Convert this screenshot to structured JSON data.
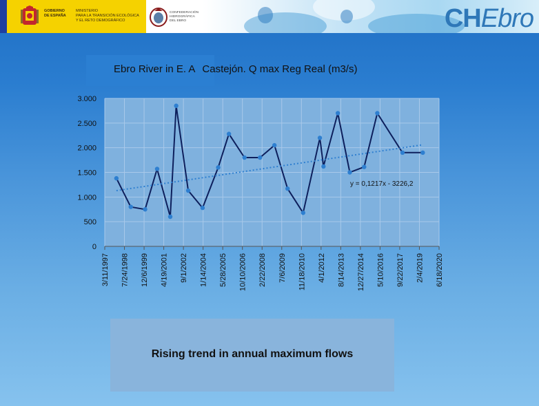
{
  "header": {
    "gov_line1": "GOBIERNO",
    "gov_line2": "DE ESPAÑA",
    "ministry_line1": "MINISTERIO",
    "ministry_line2": "PARA LA TRANSICIÓN ECOLÓGICA",
    "ministry_line3": "Y EL RETO DEMOGRÁFICO",
    "conf_line1": "CONFEDERACIÓN",
    "conf_line2": "HIDROGRÁFICA",
    "conf_line3": "DEL EBRO",
    "logo_ch": "CH",
    "logo_ebro": "Ebro"
  },
  "title": {
    "part1": "Ebro River in E. A",
    "part2": "Castejón. Q max Reg Real (m3/s)"
  },
  "bottom": {
    "text": "Rising trend in annual maximum flows"
  },
  "colors": {
    "series": "#0d1f5c",
    "markers": "#2e7fd0",
    "trend": "#2e7fd0",
    "grid": "#a9c9ea"
  },
  "chart_data": {
    "type": "line",
    "title": "Ebro River in E. A Castejón. Q max Reg Real (m3/s)",
    "x_tick_labels": [
      "3/11/1997",
      "7/24/1998",
      "12/6/1999",
      "4/19/2001",
      "9/1/2002",
      "1/14/2004",
      "5/28/2005",
      "10/10/2006",
      "2/22/2008",
      "7/6/2009",
      "11/18/2010",
      "4/1/2012",
      "8/14/2013",
      "12/27/2014",
      "5/10/2016",
      "9/22/2017",
      "2/4/2019",
      "6/18/2020"
    ],
    "xlim": [
      "3/11/1997",
      "6/18/2020"
    ],
    "ylim": [
      0,
      3000
    ],
    "y_ticks": [
      0,
      500,
      1000,
      1500,
      2000,
      2500,
      3000
    ],
    "y_tick_labels": [
      "0",
      "500",
      "1.000",
      "1.500",
      "2.000",
      "2.500",
      "3.000"
    ],
    "grid": true,
    "series": [
      {
        "x": [
          "1/1/1998",
          "1/1/1999",
          "1/1/2000",
          "11/1/2000",
          "10/1/2001",
          "3/1/2002",
          "1/1/2003",
          "1/1/2004",
          "2/1/2005",
          "11/1/2005",
          "12/1/2006",
          "1/1/2008",
          "1/1/2009",
          "12/1/2009",
          "1/1/2011",
          "3/1/2012",
          "6/1/2012",
          "6/1/2013",
          "4/1/2014",
          "4/1/2015",
          "3/1/2016",
          "12/1/2017",
          "5/1/2019"
        ],
        "y": [
          1380,
          800,
          750,
          1570,
          600,
          2850,
          1130,
          780,
          1600,
          2280,
          1800,
          1800,
          2050,
          1170,
          680,
          2200,
          1620,
          2700,
          1500,
          1610,
          2700,
          1900,
          1900
        ]
      }
    ],
    "trendline": {
      "equation": "y = 0,1217x - 3226,2",
      "y_start": 1130,
      "y_end": 2060
    }
  }
}
